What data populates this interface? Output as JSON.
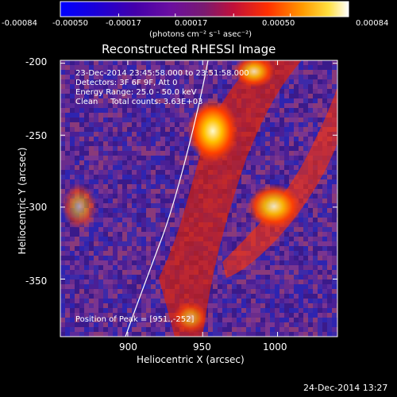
{
  "colorbar": {
    "ticks": [
      "-0.00084",
      "-0.00050",
      "-0.00017",
      "0.00017",
      "0.00050",
      "0.00084"
    ],
    "tick_values": [
      -0.00084,
      -0.0005,
      -0.00017,
      0.00017,
      0.0005,
      0.00084
    ],
    "unit_label": "(photons cm⁻² s⁻¹ asec⁻²)",
    "range": [
      -0.00084,
      0.00084
    ]
  },
  "plot": {
    "title": "Reconstructed RHESSI Image",
    "xlabel": "Heliocentric X (arcsec)",
    "ylabel": "Heliocentric Y (arcsec)",
    "xlim": [
      855,
      1040
    ],
    "ylim": [
      -390,
      -198
    ],
    "xticks": [
      900,
      950,
      1000
    ],
    "yticks": [
      -200,
      -250,
      -300,
      -350
    ]
  },
  "annotations": {
    "line1": "23-Dec-2014 23:45:58.000 to 23:51:58.000",
    "line2": "Detectors: 3F 6F 9F, Att 0",
    "line3": "Energy Range: 25.0 - 50.0 keV",
    "line4": "Clean     Total counts: 3.63E+03",
    "peak": "Position of Peak = [951.,-252]"
  },
  "footer": {
    "timestamp": "24-Dec-2014 13:27"
  },
  "colors": {
    "background": "#000000",
    "text": "#ffffff",
    "limb": "#ffffff"
  }
}
